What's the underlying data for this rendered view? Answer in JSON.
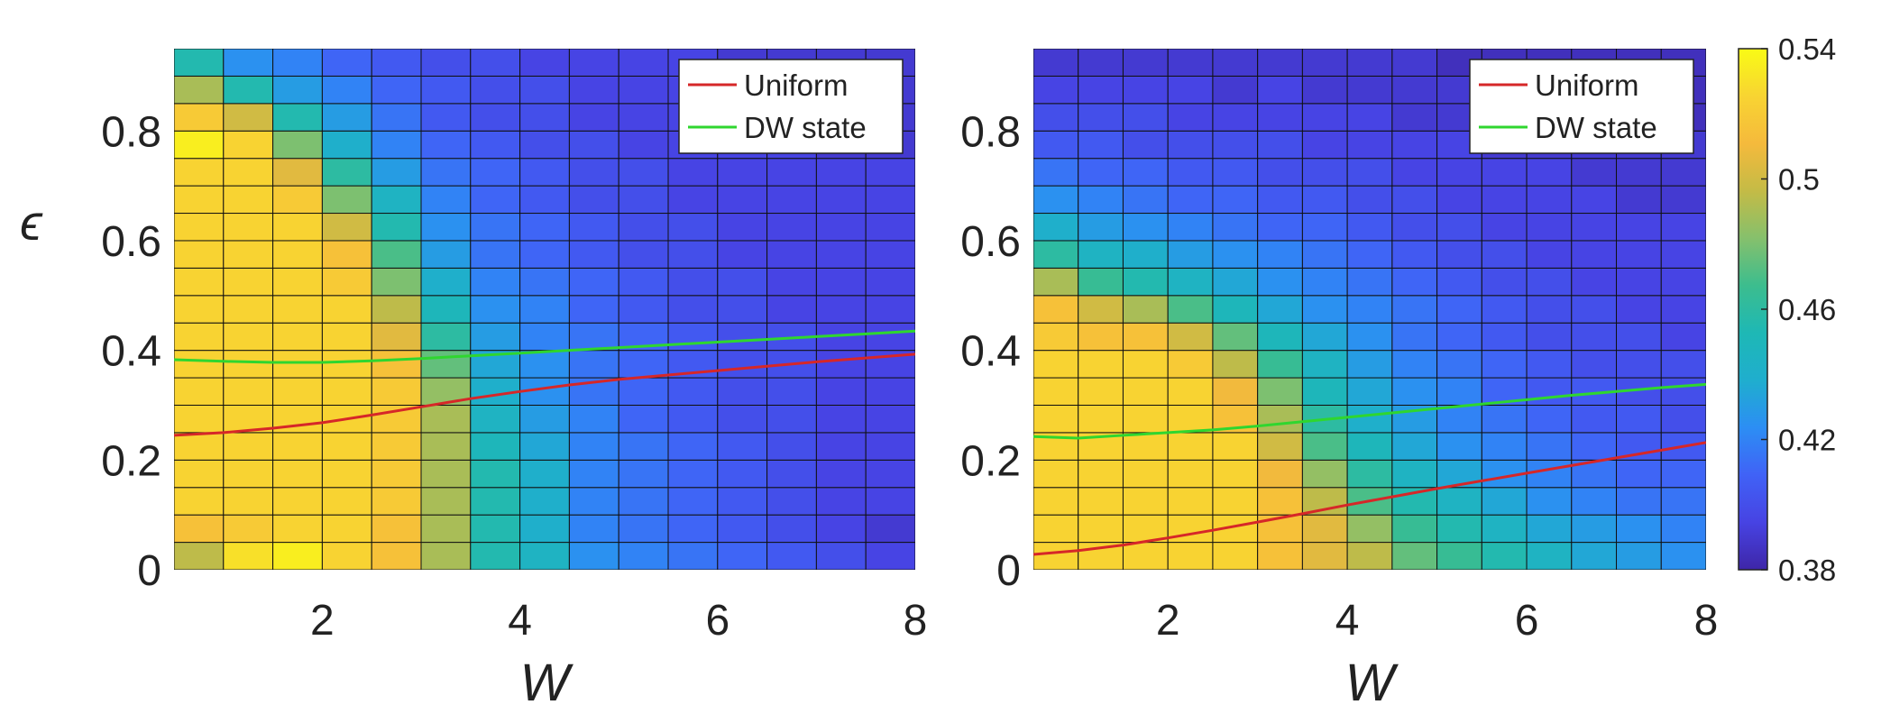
{
  "chart_data": [
    {
      "type": "heatmap",
      "xlabel": "W",
      "ylabel": "ϵ",
      "xlim": [
        0.5,
        8
      ],
      "ylim": [
        0,
        0.95
      ],
      "xticks": [
        "2",
        "4",
        "6",
        "8"
      ],
      "yticks": [
        "0",
        "0.2",
        "0.4",
        "0.6",
        "0.8"
      ],
      "grid": true,
      "legend_position": "top-right",
      "x_centers": [
        0.75,
        1.25,
        1.75,
        2.25,
        2.75,
        3.25,
        3.75,
        4.25,
        4.75,
        5.25,
        5.75,
        6.25,
        6.75,
        7.25,
        7.75
      ],
      "y_centers": [
        0.025,
        0.075,
        0.125,
        0.175,
        0.225,
        0.275,
        0.325,
        0.375,
        0.425,
        0.475,
        0.525,
        0.575,
        0.625,
        0.675,
        0.725,
        0.775,
        0.825,
        0.875,
        0.925
      ],
      "z": [
        [
          0.495,
          0.53,
          0.535,
          0.525,
          0.515,
          0.49,
          0.455,
          0.445,
          0.425,
          0.42,
          0.415,
          0.41,
          0.405,
          0.4,
          0.395
        ],
        [
          0.515,
          0.52,
          0.525,
          0.525,
          0.515,
          0.49,
          0.455,
          0.44,
          0.42,
          0.415,
          0.41,
          0.405,
          0.4,
          0.395,
          0.39
        ],
        [
          0.525,
          0.525,
          0.525,
          0.525,
          0.52,
          0.49,
          0.455,
          0.44,
          0.42,
          0.415,
          0.41,
          0.405,
          0.4,
          0.395,
          0.395
        ],
        [
          0.525,
          0.525,
          0.525,
          0.525,
          0.52,
          0.49,
          0.455,
          0.44,
          0.42,
          0.415,
          0.41,
          0.405,
          0.4,
          0.395,
          0.395
        ],
        [
          0.525,
          0.525,
          0.525,
          0.525,
          0.52,
          0.49,
          0.45,
          0.435,
          0.42,
          0.415,
          0.41,
          0.405,
          0.4,
          0.395,
          0.395
        ],
        [
          0.525,
          0.525,
          0.525,
          0.525,
          0.52,
          0.49,
          0.445,
          0.43,
          0.42,
          0.41,
          0.405,
          0.4,
          0.4,
          0.395,
          0.395
        ],
        [
          0.525,
          0.525,
          0.525,
          0.525,
          0.52,
          0.485,
          0.44,
          0.425,
          0.415,
          0.41,
          0.405,
          0.4,
          0.4,
          0.395,
          0.395
        ],
        [
          0.525,
          0.525,
          0.525,
          0.525,
          0.515,
          0.475,
          0.435,
          0.425,
          0.415,
          0.41,
          0.405,
          0.4,
          0.4,
          0.395,
          0.395
        ],
        [
          0.525,
          0.525,
          0.525,
          0.525,
          0.505,
          0.46,
          0.43,
          0.42,
          0.415,
          0.41,
          0.405,
          0.4,
          0.4,
          0.395,
          0.395
        ],
        [
          0.525,
          0.525,
          0.525,
          0.525,
          0.495,
          0.45,
          0.425,
          0.42,
          0.41,
          0.405,
          0.4,
          0.4,
          0.395,
          0.395,
          0.395
        ],
        [
          0.525,
          0.525,
          0.525,
          0.52,
          0.48,
          0.44,
          0.42,
          0.415,
          0.41,
          0.405,
          0.4,
          0.4,
          0.395,
          0.395,
          0.395
        ],
        [
          0.525,
          0.525,
          0.525,
          0.515,
          0.47,
          0.43,
          0.415,
          0.41,
          0.405,
          0.4,
          0.4,
          0.395,
          0.395,
          0.395,
          0.395
        ],
        [
          0.525,
          0.525,
          0.525,
          0.5,
          0.455,
          0.425,
          0.415,
          0.41,
          0.405,
          0.4,
          0.4,
          0.395,
          0.395,
          0.395,
          0.395
        ],
        [
          0.525,
          0.525,
          0.52,
          0.48,
          0.445,
          0.42,
          0.41,
          0.405,
          0.4,
          0.4,
          0.395,
          0.395,
          0.395,
          0.395,
          0.395
        ],
        [
          0.525,
          0.525,
          0.505,
          0.46,
          0.43,
          0.415,
          0.41,
          0.405,
          0.4,
          0.4,
          0.395,
          0.395,
          0.395,
          0.395,
          0.395
        ],
        [
          0.535,
          0.525,
          0.48,
          0.44,
          0.42,
          0.41,
          0.405,
          0.4,
          0.4,
          0.395,
          0.395,
          0.395,
          0.395,
          0.39,
          0.39
        ],
        [
          0.52,
          0.5,
          0.455,
          0.43,
          0.415,
          0.405,
          0.4,
          0.4,
          0.395,
          0.395,
          0.395,
          0.395,
          0.39,
          0.39,
          0.39
        ],
        [
          0.49,
          0.455,
          0.43,
          0.42,
          0.41,
          0.405,
          0.4,
          0.4,
          0.395,
          0.395,
          0.395,
          0.39,
          0.39,
          0.39,
          0.39
        ],
        [
          0.455,
          0.425,
          0.42,
          0.41,
          0.405,
          0.4,
          0.4,
          0.395,
          0.395,
          0.395,
          0.395,
          0.39,
          0.39,
          0.39,
          0.39
        ]
      ],
      "series": [
        {
          "name": "Uniform",
          "color": "#d62728",
          "x": [
            0.5,
            1,
            1.5,
            2,
            2.5,
            3,
            3.5,
            4,
            4.5,
            5,
            5.5,
            6,
            6.5,
            7,
            7.5,
            8
          ],
          "y": [
            0.245,
            0.25,
            0.258,
            0.268,
            0.282,
            0.297,
            0.312,
            0.325,
            0.337,
            0.347,
            0.355,
            0.363,
            0.371,
            0.379,
            0.386,
            0.393
          ]
        },
        {
          "name": "DW state",
          "color": "#2fd62f",
          "x": [
            0.5,
            1,
            1.5,
            2,
            2.5,
            3,
            3.5,
            4,
            4.5,
            5,
            5.5,
            6,
            6.5,
            7,
            7.5,
            8
          ],
          "y": [
            0.383,
            0.38,
            0.378,
            0.378,
            0.381,
            0.385,
            0.39,
            0.395,
            0.4,
            0.405,
            0.41,
            0.415,
            0.42,
            0.425,
            0.43,
            0.435
          ]
        }
      ]
    },
    {
      "type": "heatmap",
      "xlabel": "W",
      "xlim": [
        0.5,
        8
      ],
      "ylim": [
        0,
        0.95
      ],
      "xticks": [
        "2",
        "4",
        "6",
        "8"
      ],
      "yticks": [
        "0",
        "0.2",
        "0.4",
        "0.6",
        "0.8"
      ],
      "grid": true,
      "legend_position": "top-right",
      "x_centers": [
        0.75,
        1.25,
        1.75,
        2.25,
        2.75,
        3.25,
        3.75,
        4.25,
        4.75,
        5.25,
        5.75,
        6.25,
        6.75,
        7.25,
        7.75
      ],
      "y_centers": [
        0.025,
        0.075,
        0.125,
        0.175,
        0.225,
        0.275,
        0.325,
        0.375,
        0.425,
        0.475,
        0.525,
        0.575,
        0.625,
        0.675,
        0.725,
        0.775,
        0.825,
        0.875,
        0.925
      ],
      "z": [
        [
          0.525,
          0.525,
          0.525,
          0.525,
          0.525,
          0.515,
          0.505,
          0.495,
          0.475,
          0.465,
          0.455,
          0.445,
          0.435,
          0.43,
          0.425
        ],
        [
          0.525,
          0.525,
          0.525,
          0.525,
          0.525,
          0.515,
          0.505,
          0.485,
          0.465,
          0.455,
          0.445,
          0.435,
          0.43,
          0.425,
          0.42
        ],
        [
          0.525,
          0.525,
          0.525,
          0.525,
          0.525,
          0.515,
          0.495,
          0.47,
          0.455,
          0.445,
          0.435,
          0.425,
          0.42,
          0.415,
          0.415
        ],
        [
          0.525,
          0.525,
          0.525,
          0.525,
          0.525,
          0.51,
          0.485,
          0.46,
          0.445,
          0.435,
          0.425,
          0.42,
          0.415,
          0.41,
          0.41
        ],
        [
          0.525,
          0.525,
          0.525,
          0.525,
          0.525,
          0.5,
          0.47,
          0.45,
          0.435,
          0.425,
          0.42,
          0.415,
          0.41,
          0.405,
          0.405
        ],
        [
          0.525,
          0.525,
          0.525,
          0.525,
          0.515,
          0.49,
          0.46,
          0.44,
          0.43,
          0.42,
          0.415,
          0.41,
          0.405,
          0.405,
          0.4
        ],
        [
          0.525,
          0.525,
          0.525,
          0.525,
          0.51,
          0.48,
          0.45,
          0.435,
          0.425,
          0.42,
          0.41,
          0.405,
          0.405,
          0.4,
          0.4
        ],
        [
          0.525,
          0.525,
          0.525,
          0.52,
          0.495,
          0.465,
          0.445,
          0.43,
          0.42,
          0.415,
          0.41,
          0.405,
          0.4,
          0.4,
          0.4
        ],
        [
          0.52,
          0.515,
          0.515,
          0.5,
          0.475,
          0.45,
          0.435,
          0.425,
          0.415,
          0.41,
          0.405,
          0.4,
          0.4,
          0.4,
          0.395
        ],
        [
          0.515,
          0.5,
          0.49,
          0.47,
          0.45,
          0.435,
          0.425,
          0.42,
          0.415,
          0.41,
          0.405,
          0.4,
          0.4,
          0.395,
          0.395
        ],
        [
          0.49,
          0.465,
          0.455,
          0.445,
          0.435,
          0.425,
          0.42,
          0.415,
          0.41,
          0.405,
          0.4,
          0.4,
          0.395,
          0.395,
          0.395
        ],
        [
          0.46,
          0.445,
          0.44,
          0.43,
          0.425,
          0.42,
          0.415,
          0.41,
          0.405,
          0.4,
          0.4,
          0.395,
          0.395,
          0.395,
          0.395
        ],
        [
          0.44,
          0.43,
          0.425,
          0.42,
          0.415,
          0.41,
          0.41,
          0.405,
          0.4,
          0.4,
          0.395,
          0.395,
          0.395,
          0.395,
          0.395
        ],
        [
          0.425,
          0.42,
          0.415,
          0.41,
          0.41,
          0.405,
          0.405,
          0.4,
          0.4,
          0.395,
          0.395,
          0.395,
          0.395,
          0.39,
          0.39
        ],
        [
          0.415,
          0.41,
          0.41,
          0.405,
          0.405,
          0.4,
          0.4,
          0.4,
          0.395,
          0.395,
          0.395,
          0.395,
          0.39,
          0.39,
          0.39
        ],
        [
          0.405,
          0.405,
          0.4,
          0.4,
          0.4,
          0.4,
          0.395,
          0.395,
          0.395,
          0.395,
          0.39,
          0.39,
          0.39,
          0.39,
          0.39
        ],
        [
          0.4,
          0.4,
          0.4,
          0.395,
          0.395,
          0.395,
          0.395,
          0.395,
          0.39,
          0.39,
          0.39,
          0.39,
          0.39,
          0.39,
          0.385
        ],
        [
          0.395,
          0.395,
          0.395,
          0.395,
          0.39,
          0.395,
          0.39,
          0.39,
          0.39,
          0.39,
          0.39,
          0.39,
          0.385,
          0.385,
          0.385
        ],
        [
          0.39,
          0.39,
          0.39,
          0.39,
          0.39,
          0.39,
          0.39,
          0.39,
          0.39,
          0.385,
          0.385,
          0.385,
          0.385,
          0.385,
          0.385
        ]
      ],
      "series": [
        {
          "name": "Uniform",
          "color": "#d62728",
          "x": [
            0.5,
            1,
            1.5,
            2,
            2.5,
            3,
            3.5,
            4,
            4.5,
            5,
            5.5,
            6,
            6.5,
            7,
            7.5,
            8
          ],
          "y": [
            0.028,
            0.035,
            0.045,
            0.058,
            0.072,
            0.087,
            0.102,
            0.118,
            0.133,
            0.148,
            0.162,
            0.176,
            0.19,
            0.204,
            0.218,
            0.232
          ]
        },
        {
          "name": "DW state",
          "color": "#2fd62f",
          "x": [
            0.5,
            1,
            1.5,
            2,
            2.5,
            3,
            3.5,
            4,
            4.5,
            5,
            5.5,
            6,
            6.5,
            7,
            7.5,
            8
          ],
          "y": [
            0.243,
            0.24,
            0.245,
            0.25,
            0.255,
            0.262,
            0.27,
            0.278,
            0.286,
            0.294,
            0.302,
            0.31,
            0.318,
            0.325,
            0.332,
            0.338
          ]
        }
      ]
    }
  ],
  "colorbar": {
    "range": [
      0.38,
      0.54
    ],
    "ticks": [
      "0.38",
      "0.42",
      "0.46",
      "0.5",
      "0.54"
    ],
    "tick_values": [
      0.38,
      0.42,
      0.46,
      0.5,
      0.54
    ]
  },
  "colormap": [
    "#3e26a8",
    "#4743e3",
    "#4062f6",
    "#2c8ef4",
    "#1faece",
    "#1eb8b5",
    "#3cbd8e",
    "#86c06c",
    "#c4bb46",
    "#f5ba3c",
    "#f8d432",
    "#f9fb15"
  ]
}
